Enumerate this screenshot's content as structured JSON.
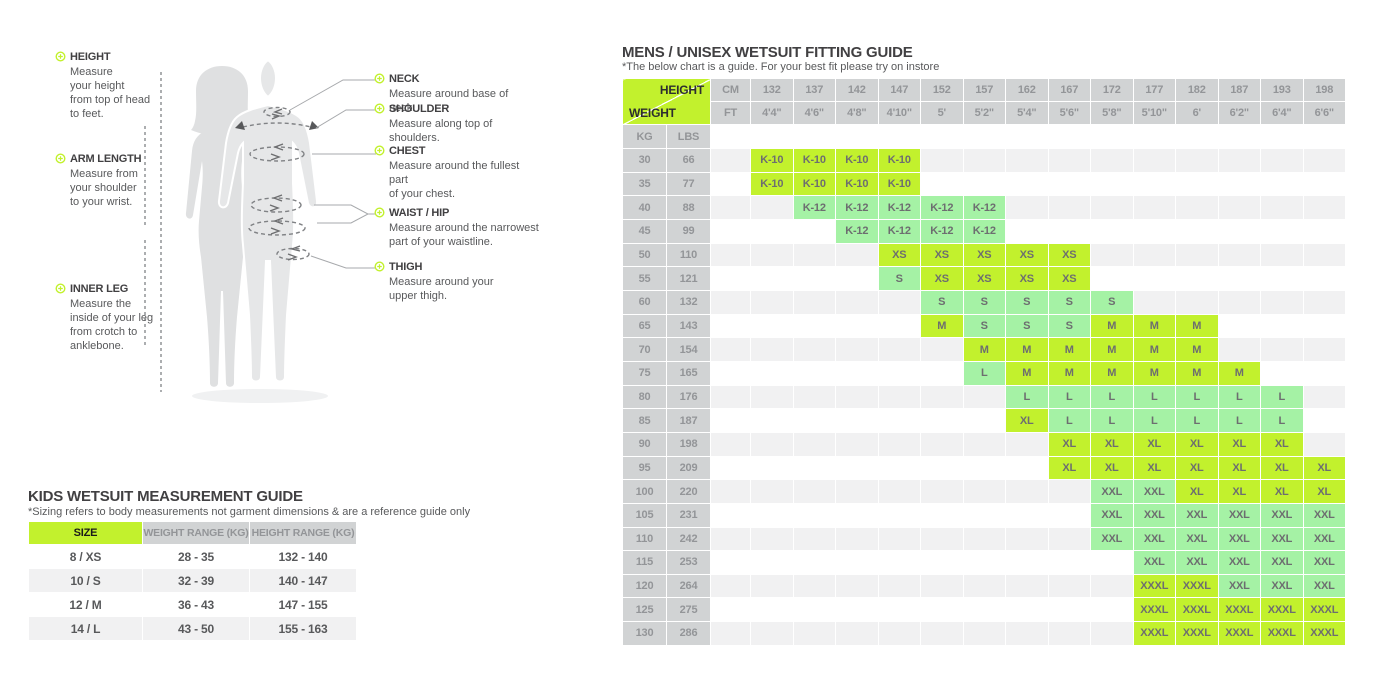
{
  "colors": {
    "lime": "#c2f12d",
    "light_green": "#a5f2a5",
    "header_gray": "#d1d3d4",
    "header_text": "#939598",
    "cell_text": "#6d6e70",
    "row_alt": "#f1f1f2",
    "title_text": "#414042",
    "body_text": "#58595b"
  },
  "diagram": {
    "left_labels": [
      {
        "title": "HEIGHT",
        "desc": "Measure\nyour height\nfrom top of head\nto feet."
      },
      {
        "title": "ARM LENGTH",
        "desc": "Measure from\nyour shoulder\nto your wrist."
      },
      {
        "title": "INNER LEG",
        "desc": "Measure the\ninside of your leg\nfrom crotch to\nanklebone."
      }
    ],
    "right_labels": [
      {
        "title": "NECK",
        "desc": "Measure around base of neck."
      },
      {
        "title": "SHOULDER",
        "desc": "Measure along top of shoulders."
      },
      {
        "title": "CHEST",
        "desc": "Measure around the fullest part\nof your chest."
      },
      {
        "title": "WAIST / HIP",
        "desc": "Measure around the narrowest\npart of your waistline."
      },
      {
        "title": "THIGH",
        "desc": "Measure around your\nupper thigh."
      }
    ]
  },
  "kids_guide": {
    "title": "KIDS WETSUIT MEASUREMENT GUIDE",
    "subtitle": "*Sizing refers to body measurements not garment dimensions & are a reference guide only",
    "headers": [
      "SIZE",
      "WEIGHT RANGE (KG)",
      "HEIGHT RANGE (KG)"
    ],
    "rows": [
      [
        "8 / XS",
        "28 - 35",
        "132 - 140"
      ],
      [
        "10 / S",
        "32 - 39",
        "140 - 147"
      ],
      [
        "12 / M",
        "36 - 43",
        "147 - 155"
      ],
      [
        "14 / L",
        "43 - 50",
        "155 - 163"
      ]
    ]
  },
  "mens_guide": {
    "title": "MENS / UNISEX WETSUIT FITTING GUIDE",
    "subtitle": "*The below chart is a guide. For your best fit please try on instore",
    "corner": {
      "height": "HEIGHT",
      "weight": "WEIGHT"
    },
    "units": {
      "cm": "CM",
      "ft": "FT",
      "kg": "KG",
      "lbs": "LBS"
    },
    "heights_cm": [
      "132",
      "137",
      "142",
      "147",
      "152",
      "157",
      "162",
      "167",
      "172",
      "177",
      "182",
      "187",
      "193",
      "198"
    ],
    "heights_ft": [
      "4'4\"",
      "4'6\"",
      "4'8\"",
      "4'10\"",
      "5'",
      "5'2\"",
      "5'4\"",
      "5'6\"",
      "5'8\"",
      "5'10\"",
      "6'",
      "6'2\"",
      "6'4\"",
      "6'6\""
    ],
    "rows": [
      {
        "kg": "30",
        "lbs": "66",
        "cells": [
          [
            "K-10",
            "L"
          ],
          [
            "K-10",
            "L"
          ],
          [
            "K-10",
            "L"
          ],
          [
            "K-10",
            "L"
          ],
          null,
          null,
          null,
          null,
          null,
          null,
          null,
          null,
          null,
          null
        ]
      },
      {
        "kg": "35",
        "lbs": "77",
        "cells": [
          [
            "K-10",
            "L"
          ],
          [
            "K-10",
            "L"
          ],
          [
            "K-10",
            "L"
          ],
          [
            "K-10",
            "L"
          ],
          null,
          null,
          null,
          null,
          null,
          null,
          null,
          null,
          null,
          null
        ]
      },
      {
        "kg": "40",
        "lbs": "88",
        "cells": [
          null,
          [
            "K-12",
            "G"
          ],
          [
            "K-12",
            "G"
          ],
          [
            "K-12",
            "G"
          ],
          [
            "K-12",
            "G"
          ],
          [
            "K-12",
            "G"
          ],
          null,
          null,
          null,
          null,
          null,
          null,
          null,
          null
        ]
      },
      {
        "kg": "45",
        "lbs": "99",
        "cells": [
          null,
          null,
          [
            "K-12",
            "G"
          ],
          [
            "K-12",
            "G"
          ],
          [
            "K-12",
            "G"
          ],
          [
            "K-12",
            "G"
          ],
          null,
          null,
          null,
          null,
          null,
          null,
          null,
          null
        ]
      },
      {
        "kg": "50",
        "lbs": "110",
        "cells": [
          null,
          null,
          null,
          [
            "XS",
            "L"
          ],
          [
            "XS",
            "L"
          ],
          [
            "XS",
            "L"
          ],
          [
            "XS",
            "L"
          ],
          [
            "XS",
            "L"
          ],
          null,
          null,
          null,
          null,
          null,
          null
        ]
      },
      {
        "kg": "55",
        "lbs": "121",
        "cells": [
          null,
          null,
          null,
          [
            "S",
            "G"
          ],
          [
            "XS",
            "L"
          ],
          [
            "XS",
            "L"
          ],
          [
            "XS",
            "L"
          ],
          [
            "XS",
            "L"
          ],
          null,
          null,
          null,
          null,
          null,
          null
        ]
      },
      {
        "kg": "60",
        "lbs": "132",
        "cells": [
          null,
          null,
          null,
          null,
          [
            "S",
            "G"
          ],
          [
            "S",
            "G"
          ],
          [
            "S",
            "G"
          ],
          [
            "S",
            "G"
          ],
          [
            "S",
            "G"
          ],
          null,
          null,
          null,
          null,
          null
        ]
      },
      {
        "kg": "65",
        "lbs": "143",
        "cells": [
          null,
          null,
          null,
          null,
          [
            "M",
            "L"
          ],
          [
            "S",
            "G"
          ],
          [
            "S",
            "G"
          ],
          [
            "S",
            "G"
          ],
          [
            "M",
            "L"
          ],
          [
            "M",
            "L"
          ],
          [
            "M",
            "L"
          ],
          null,
          null,
          null
        ]
      },
      {
        "kg": "70",
        "lbs": "154",
        "cells": [
          null,
          null,
          null,
          null,
          null,
          [
            "M",
            "L"
          ],
          [
            "M",
            "L"
          ],
          [
            "M",
            "L"
          ],
          [
            "M",
            "L"
          ],
          [
            "M",
            "L"
          ],
          [
            "M",
            "L"
          ],
          null,
          null,
          null
        ]
      },
      {
        "kg": "75",
        "lbs": "165",
        "cells": [
          null,
          null,
          null,
          null,
          null,
          [
            "L",
            "G"
          ],
          [
            "M",
            "L"
          ],
          [
            "M",
            "L"
          ],
          [
            "M",
            "L"
          ],
          [
            "M",
            "L"
          ],
          [
            "M",
            "L"
          ],
          [
            "M",
            "L"
          ],
          null,
          null
        ]
      },
      {
        "kg": "80",
        "lbs": "176",
        "cells": [
          null,
          null,
          null,
          null,
          null,
          null,
          [
            "L",
            "G"
          ],
          [
            "L",
            "G"
          ],
          [
            "L",
            "G"
          ],
          [
            "L",
            "G"
          ],
          [
            "L",
            "G"
          ],
          [
            "L",
            "G"
          ],
          [
            "L",
            "G"
          ],
          null
        ]
      },
      {
        "kg": "85",
        "lbs": "187",
        "cells": [
          null,
          null,
          null,
          null,
          null,
          null,
          [
            "XL",
            "L"
          ],
          [
            "L",
            "G"
          ],
          [
            "L",
            "G"
          ],
          [
            "L",
            "G"
          ],
          [
            "L",
            "G"
          ],
          [
            "L",
            "G"
          ],
          [
            "L",
            "G"
          ],
          null
        ]
      },
      {
        "kg": "90",
        "lbs": "198",
        "cells": [
          null,
          null,
          null,
          null,
          null,
          null,
          null,
          [
            "XL",
            "L"
          ],
          [
            "XL",
            "L"
          ],
          [
            "XL",
            "L"
          ],
          [
            "XL",
            "L"
          ],
          [
            "XL",
            "L"
          ],
          [
            "XL",
            "L"
          ],
          null
        ]
      },
      {
        "kg": "95",
        "lbs": "209",
        "cells": [
          null,
          null,
          null,
          null,
          null,
          null,
          null,
          [
            "XL",
            "L"
          ],
          [
            "XL",
            "L"
          ],
          [
            "XL",
            "L"
          ],
          [
            "XL",
            "L"
          ],
          [
            "XL",
            "L"
          ],
          [
            "XL",
            "L"
          ],
          [
            "XL",
            "L"
          ]
        ]
      },
      {
        "kg": "100",
        "lbs": "220",
        "cells": [
          null,
          null,
          null,
          null,
          null,
          null,
          null,
          null,
          [
            "XXL",
            "G"
          ],
          [
            "XXL",
            "G"
          ],
          [
            "XL",
            "L"
          ],
          [
            "XL",
            "L"
          ],
          [
            "XL",
            "L"
          ],
          [
            "XL",
            "L"
          ]
        ]
      },
      {
        "kg": "105",
        "lbs": "231",
        "cells": [
          null,
          null,
          null,
          null,
          null,
          null,
          null,
          null,
          [
            "XXL",
            "G"
          ],
          [
            "XXL",
            "G"
          ],
          [
            "XXL",
            "G"
          ],
          [
            "XXL",
            "G"
          ],
          [
            "XXL",
            "G"
          ],
          [
            "XXL",
            "G"
          ]
        ]
      },
      {
        "kg": "110",
        "lbs": "242",
        "cells": [
          null,
          null,
          null,
          null,
          null,
          null,
          null,
          null,
          [
            "XXL",
            "G"
          ],
          [
            "XXL",
            "G"
          ],
          [
            "XXL",
            "G"
          ],
          [
            "XXL",
            "G"
          ],
          [
            "XXL",
            "G"
          ],
          [
            "XXL",
            "G"
          ]
        ]
      },
      {
        "kg": "115",
        "lbs": "253",
        "cells": [
          null,
          null,
          null,
          null,
          null,
          null,
          null,
          null,
          null,
          [
            "XXL",
            "G"
          ],
          [
            "XXL",
            "G"
          ],
          [
            "XXL",
            "G"
          ],
          [
            "XXL",
            "G"
          ],
          [
            "XXL",
            "G"
          ]
        ]
      },
      {
        "kg": "120",
        "lbs": "264",
        "cells": [
          null,
          null,
          null,
          null,
          null,
          null,
          null,
          null,
          null,
          [
            "XXXL",
            "L"
          ],
          [
            "XXXL",
            "L"
          ],
          [
            "XXL",
            "G"
          ],
          [
            "XXL",
            "G"
          ],
          [
            "XXL",
            "G"
          ]
        ]
      },
      {
        "kg": "125",
        "lbs": "275",
        "cells": [
          null,
          null,
          null,
          null,
          null,
          null,
          null,
          null,
          null,
          [
            "XXXL",
            "L"
          ],
          [
            "XXXL",
            "L"
          ],
          [
            "XXXL",
            "L"
          ],
          [
            "XXXL",
            "L"
          ],
          [
            "XXXL",
            "L"
          ]
        ]
      },
      {
        "kg": "130",
        "lbs": "286",
        "cells": [
          null,
          null,
          null,
          null,
          null,
          null,
          null,
          null,
          null,
          [
            "XXXL",
            "L"
          ],
          [
            "XXXL",
            "L"
          ],
          [
            "XXXL",
            "L"
          ],
          [
            "XXXL",
            "L"
          ],
          [
            "XXXL",
            "L"
          ]
        ]
      }
    ]
  }
}
